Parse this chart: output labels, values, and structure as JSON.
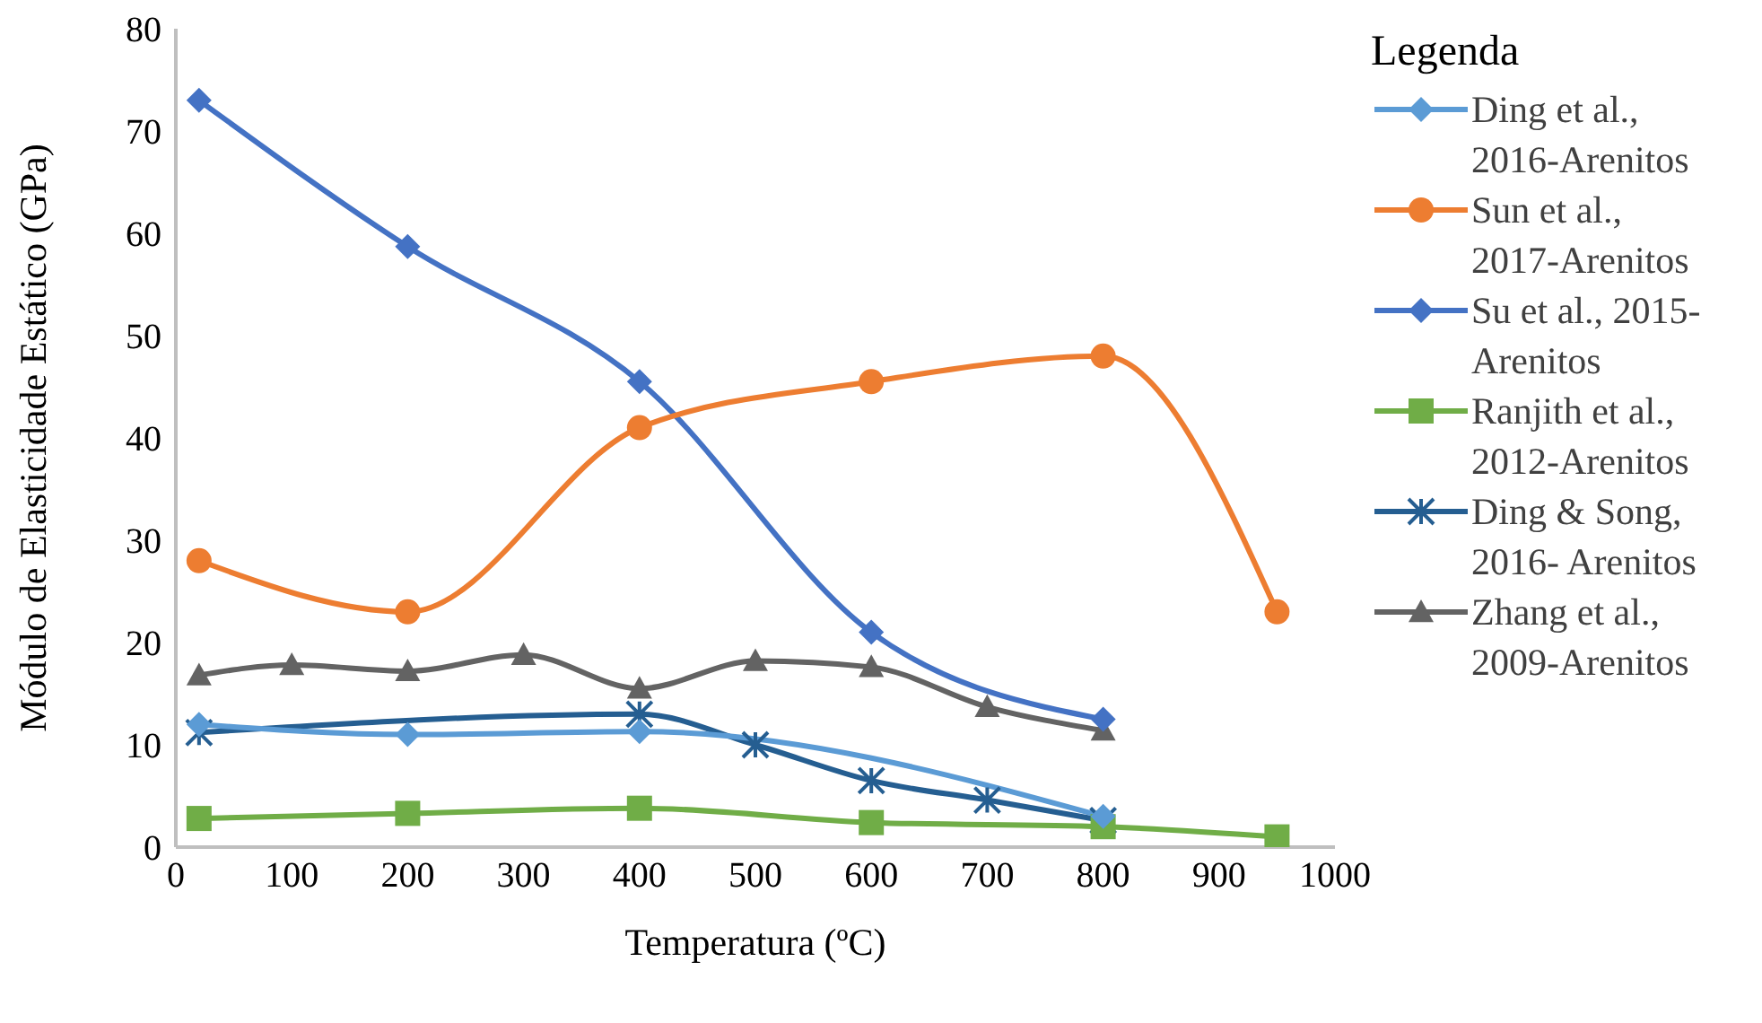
{
  "chart_data": {
    "type": "line",
    "xlabel": "Temperatura (ºC)",
    "ylabel": "Módulo de Elasticidade Estático (GPa)",
    "legend_title": "Legenda",
    "legend": "right",
    "grid": false,
    "xlim": [
      0,
      1000
    ],
    "xticks": [
      0,
      100,
      200,
      300,
      400,
      500,
      600,
      700,
      800,
      900,
      1000
    ],
    "ylim": [
      0,
      80
    ],
    "yticks": [
      0,
      10,
      20,
      30,
      40,
      50,
      60,
      70,
      80
    ],
    "series": [
      {
        "name": "Ding et al., 2016-Arenitos",
        "color": "#5b9bd5",
        "marker": "diamond",
        "x": [
          20,
          200,
          400,
          800
        ],
        "values": [
          12,
          11,
          11.3,
          3
        ]
      },
      {
        "name": "Sun et al., 2017-Arenitos",
        "color": "#ed7d31",
        "marker": "circle",
        "x": [
          20,
          200,
          400,
          600,
          800,
          950
        ],
        "values": [
          28,
          23,
          41,
          45.5,
          48,
          23
        ]
      },
      {
        "name": "Su et al., 2015-Arenitos",
        "color": "#4472c4",
        "marker": "diamond",
        "x": [
          20,
          200,
          400,
          600,
          800
        ],
        "values": [
          73,
          58.7,
          45.5,
          21,
          12.5
        ]
      },
      {
        "name": "Ranjith et al., 2012-Arenitos",
        "color": "#70ad47",
        "marker": "square",
        "x": [
          20,
          200,
          400,
          600,
          800,
          950
        ],
        "values": [
          2.8,
          3.3,
          3.8,
          2.4,
          2,
          1
        ]
      },
      {
        "name": "Ding & Song, 2016- Arenitos",
        "color": "#255e91",
        "marker": "cross",
        "x": [
          20,
          400,
          500,
          600,
          700,
          800
        ],
        "values": [
          11.2,
          13,
          10,
          6.5,
          4.6,
          2.6
        ]
      },
      {
        "name": "Zhang et al., 2009-Arenitos",
        "color": "#636363",
        "marker": "triangle",
        "x": [
          20,
          100,
          200,
          300,
          400,
          500,
          600,
          700,
          800
        ],
        "values": [
          16.8,
          17.8,
          17.2,
          18.8,
          15.5,
          18.2,
          17.6,
          13.7,
          11.4
        ]
      }
    ]
  }
}
